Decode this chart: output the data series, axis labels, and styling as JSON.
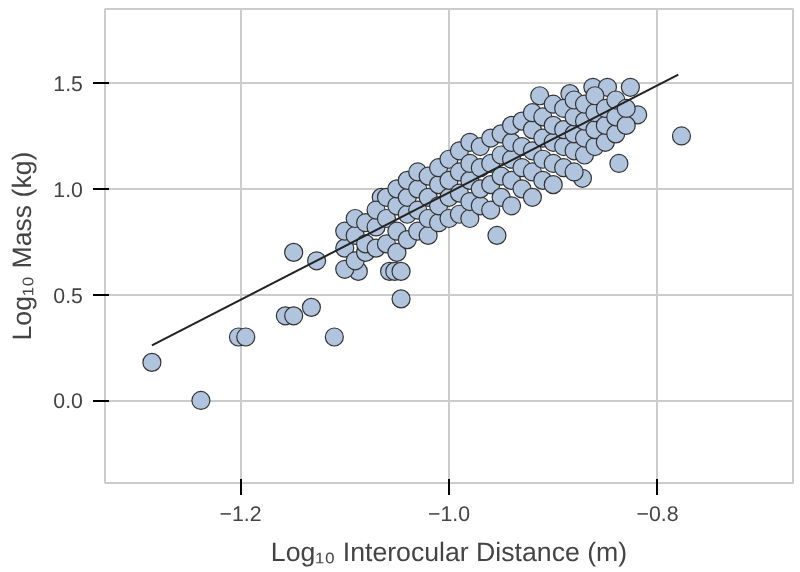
{
  "chart_data": {
    "type": "scatter",
    "xlabel": "Log₁₀ Interocular Distance (m)",
    "ylabel": "Log₁₀ Mass (kg)",
    "xlim": [
      -1.33,
      -0.67
    ],
    "ylim": [
      -0.39,
      1.85
    ],
    "xticks": [
      {
        "value": -1.2,
        "label": "−1.2"
      },
      {
        "value": -1.0,
        "label": "−1.0"
      },
      {
        "value": -0.8,
        "label": "−0.8"
      }
    ],
    "yticks": [
      {
        "value": 0.0,
        "label": "0.0"
      },
      {
        "value": 0.5,
        "label": "0.5"
      },
      {
        "value": 1.0,
        "label": "1.0"
      },
      {
        "value": 1.5,
        "label": "1.5"
      }
    ],
    "grid": true,
    "series": [
      {
        "color": "#b0c4de",
        "marker": "circle",
        "x": [
          -1.285,
          -1.238,
          -1.202,
          -1.195,
          -1.157,
          -1.149,
          -1.132,
          -1.11,
          -1.046,
          -1.057,
          -1.052,
          -1.046,
          -1.087,
          -1.127,
          -1.149,
          -1.065,
          -0.777,
          -0.837,
          -0.872,
          -0.954,
          -0.913,
          -0.884,
          -0.862,
          -0.848,
          -0.826,
          -0.819,
          -1.1,
          -1.1,
          -1.1,
          -1.09,
          -1.09,
          -1.09,
          -1.08,
          -1.08,
          -1.08,
          -1.07,
          -1.07,
          -1.07,
          -1.06,
          -1.06,
          -1.06,
          -1.05,
          -1.05,
          -1.05,
          -1.05,
          -1.04,
          -1.04,
          -1.04,
          -1.04,
          -1.03,
          -1.03,
          -1.03,
          -1.03,
          -1.02,
          -1.02,
          -1.02,
          -1.02,
          -1.01,
          -1.01,
          -1.01,
          -1.01,
          -1.0,
          -1.0,
          -1.0,
          -1.0,
          -0.99,
          -0.99,
          -0.99,
          -0.99,
          -0.98,
          -0.98,
          -0.98,
          -0.98,
          -0.98,
          -0.97,
          -0.97,
          -0.97,
          -0.97,
          -0.96,
          -0.96,
          -0.96,
          -0.96,
          -0.95,
          -0.95,
          -0.95,
          -0.95,
          -0.94,
          -0.94,
          -0.94,
          -0.94,
          -0.94,
          -0.93,
          -0.93,
          -0.93,
          -0.93,
          -0.92,
          -0.92,
          -0.92,
          -0.92,
          -0.92,
          -0.91,
          -0.91,
          -0.91,
          -0.91,
          -0.9,
          -0.9,
          -0.9,
          -0.9,
          -0.9,
          -0.89,
          -0.89,
          -0.89,
          -0.89,
          -0.88,
          -0.88,
          -0.88,
          -0.88,
          -0.88,
          -0.87,
          -0.87,
          -0.87,
          -0.87,
          -0.86,
          -0.86,
          -0.86,
          -0.86,
          -0.85,
          -0.85,
          -0.85,
          -0.84,
          -0.84,
          -0.84,
          -0.83,
          -0.83
        ],
        "values": [
          0.18,
          0.0,
          0.3,
          0.3,
          0.4,
          0.4,
          0.44,
          0.3,
          0.48,
          0.61,
          0.61,
          0.61,
          0.61,
          0.66,
          0.7,
          0.96,
          1.25,
          1.12,
          1.05,
          0.78,
          1.44,
          1.45,
          1.48,
          1.48,
          1.48,
          1.35,
          0.62,
          0.72,
          0.8,
          0.66,
          0.78,
          0.86,
          0.7,
          0.84,
          0.74,
          0.72,
          0.82,
          0.9,
          0.74,
          0.86,
          0.96,
          0.7,
          0.8,
          0.92,
          1.0,
          0.76,
          0.88,
          0.96,
          1.04,
          0.8,
          0.9,
          1.0,
          1.08,
          0.78,
          0.86,
          0.96,
          1.06,
          0.84,
          0.92,
          1.02,
          1.1,
          0.86,
          0.96,
          1.04,
          1.14,
          0.88,
          0.98,
          1.08,
          1.18,
          0.86,
          0.94,
          1.04,
          1.12,
          1.22,
          0.92,
          1.0,
          1.1,
          1.2,
          0.9,
          1.02,
          1.12,
          1.24,
          0.96,
          1.06,
          1.16,
          1.26,
          0.92,
          1.04,
          1.14,
          1.22,
          1.3,
          1.0,
          1.1,
          1.2,
          1.32,
          0.96,
          1.08,
          1.18,
          1.28,
          1.36,
          1.04,
          1.14,
          1.24,
          1.34,
          1.02,
          1.12,
          1.22,
          1.3,
          1.4,
          1.1,
          1.2,
          1.28,
          1.38,
          1.08,
          1.18,
          1.26,
          1.34,
          1.42,
          1.16,
          1.24,
          1.32,
          1.4,
          1.2,
          1.28,
          1.36,
          1.44,
          1.22,
          1.3,
          1.38,
          1.26,
          1.34,
          1.42,
          1.3,
          1.38
        ]
      },
      {
        "type": "line",
        "color": "#222222",
        "x": [
          -1.285,
          -0.78
        ],
        "values": [
          0.26,
          1.54
        ]
      }
    ]
  }
}
